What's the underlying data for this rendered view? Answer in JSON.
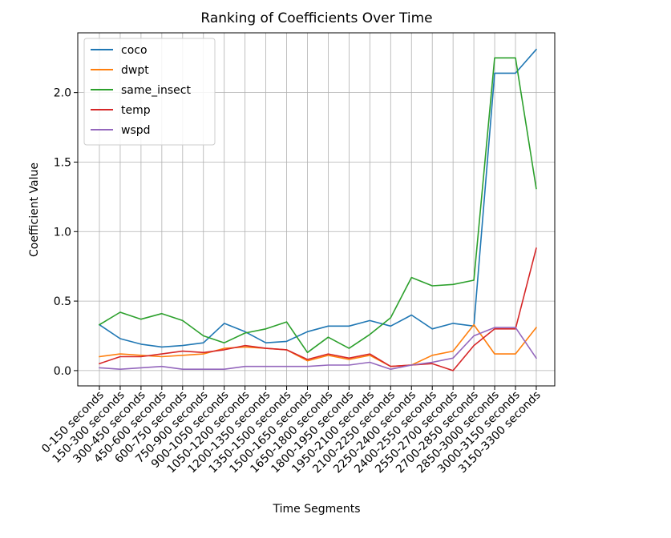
{
  "chart_data": {
    "type": "line",
    "title": "Ranking of Coefficients Over Time",
    "xlabel": "Time Segments",
    "ylabel": "Coefficient Value",
    "ylim": [
      -0.11,
      2.43
    ],
    "yticks": [
      0.0,
      0.5,
      1.0,
      1.5,
      2.0
    ],
    "ytick_labels": [
      "0.0",
      "0.5",
      "1.0",
      "1.5",
      "2.0"
    ],
    "grid": true,
    "legend_position": "top-left",
    "categories": [
      "0-150 seconds",
      "150-300 seconds",
      "300-450 seconds",
      "450-600 seconds",
      "600-750 seconds",
      "750-900 seconds",
      "900-1050 seconds",
      "1050-1200 seconds",
      "1200-1350 seconds",
      "1350-1500 seconds",
      "1500-1650 seconds",
      "1650-1800 seconds",
      "1800-1950 seconds",
      "1950-2100 seconds",
      "2100-2250 seconds",
      "2250-2400 seconds",
      "2400-2550 seconds",
      "2550-2700 seconds",
      "2700-2850 seconds",
      "2850-3000 seconds",
      "3000-3150 seconds",
      "3150-3300 seconds"
    ],
    "series": [
      {
        "name": "coco",
        "color": "#1f77b4",
        "values": [
          0.33,
          0.23,
          0.19,
          0.17,
          0.18,
          0.2,
          0.34,
          0.28,
          0.2,
          0.21,
          0.28,
          0.32,
          0.32,
          0.36,
          0.32,
          0.4,
          0.3,
          0.34,
          0.32,
          2.14,
          2.14,
          2.31
        ]
      },
      {
        "name": "dwpt",
        "color": "#ff7f0e",
        "values": [
          0.1,
          0.12,
          0.11,
          0.1,
          0.11,
          0.12,
          0.16,
          0.17,
          0.16,
          0.15,
          0.07,
          0.11,
          0.08,
          0.11,
          0.03,
          0.04,
          0.11,
          0.14,
          0.33,
          0.12,
          0.12,
          0.31
        ]
      },
      {
        "name": "same_insect",
        "color": "#2ca02c",
        "values": [
          0.33,
          0.42,
          0.37,
          0.41,
          0.36,
          0.25,
          0.2,
          0.27,
          0.3,
          0.35,
          0.13,
          0.24,
          0.16,
          0.26,
          0.38,
          0.67,
          0.61,
          0.62,
          0.65,
          2.25,
          2.25,
          1.31
        ]
      },
      {
        "name": "temp",
        "color": "#d62728",
        "values": [
          0.05,
          0.1,
          0.1,
          0.12,
          0.14,
          0.13,
          0.15,
          0.18,
          0.16,
          0.15,
          0.08,
          0.12,
          0.09,
          0.12,
          0.03,
          0.04,
          0.05,
          0.0,
          0.18,
          0.3,
          0.3,
          0.88
        ]
      },
      {
        "name": "wspd",
        "color": "#9467bd",
        "values": [
          0.02,
          0.01,
          0.02,
          0.03,
          0.01,
          0.01,
          0.01,
          0.03,
          0.03,
          0.03,
          0.03,
          0.04,
          0.04,
          0.06,
          0.01,
          0.04,
          0.06,
          0.09,
          0.25,
          0.31,
          0.31,
          0.09
        ]
      }
    ]
  }
}
